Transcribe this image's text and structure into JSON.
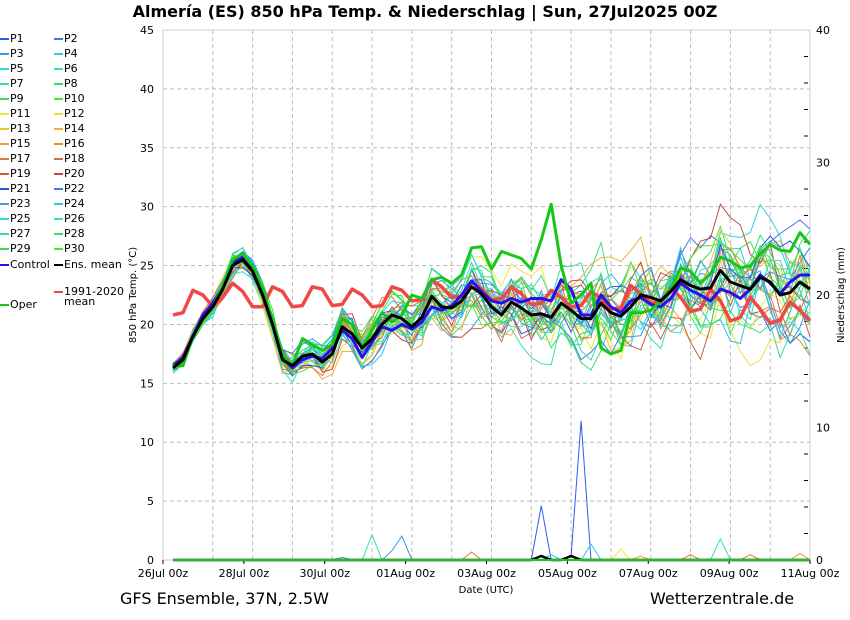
{
  "header": {
    "title": "Almería  (ES)  850 hPa Temp. & Niederschlag | Sun, 27Jul2025 00Z"
  },
  "footer": {
    "left": "GFS Ensemble, 37N, 2.5W",
    "right": "Wetterzentrale.de"
  },
  "chart_data": {
    "type": "line",
    "title": "Almería  (ES)  850 hPa Temp. & Niederschlag | Sun, 27Jul2025 00Z",
    "xlabel": "Date (UTC)",
    "ylabel": "850 hPa Temp. (°C)",
    "y2label": "Niederschlag (mm)",
    "ylim": [
      0,
      45
    ],
    "y2lim": [
      0,
      40
    ],
    "yticks": [
      "0",
      "5",
      "10",
      "15",
      "20",
      "25",
      "30",
      "35",
      "40",
      "45"
    ],
    "y2ticks": [
      "0",
      "10",
      "20",
      "30",
      "40"
    ],
    "xticks": [
      "26Jul 00z",
      "28Jul 00z",
      "30Jul 00z",
      "01Aug 00z",
      "03Aug 00z",
      "05Aug 00z",
      "07Aug 00z",
      "09Aug 00z",
      "11Aug 00z"
    ],
    "x_step_hours": 6,
    "grid": true,
    "legend_placement": "left-outside",
    "legend": [
      {
        "name": "P1",
        "color": "#2f5bea"
      },
      {
        "name": "P2",
        "color": "#3a7de6"
      },
      {
        "name": "P3",
        "color": "#3a9be6"
      },
      {
        "name": "P4",
        "color": "#31c4ec"
      },
      {
        "name": "P5",
        "color": "#2fd7df"
      },
      {
        "name": "P6",
        "color": "#36e0b0"
      },
      {
        "name": "P7",
        "color": "#34df86"
      },
      {
        "name": "P8",
        "color": "#2ee06a"
      },
      {
        "name": "P9",
        "color": "#3de04a"
      },
      {
        "name": "P10",
        "color": "#4ee43a"
      },
      {
        "name": "P11",
        "color": "#f0e83a"
      },
      {
        "name": "P12",
        "color": "#f2de3a"
      },
      {
        "name": "P13",
        "color": "#f2c23a"
      },
      {
        "name": "P14",
        "color": "#f0b43a"
      },
      {
        "name": "P15",
        "color": "#f0a03a"
      },
      {
        "name": "P16",
        "color": "#e89035"
      },
      {
        "name": "P17",
        "color": "#e07a3a"
      },
      {
        "name": "P18",
        "color": "#d86a44"
      },
      {
        "name": "P19",
        "color": "#c85a48"
      },
      {
        "name": "P20",
        "color": "#bf4a4a"
      },
      {
        "name": "P21",
        "color": "#2f4fe0"
      },
      {
        "name": "P22",
        "color": "#3a7de6"
      },
      {
        "name": "P23",
        "color": "#3a9be6"
      },
      {
        "name": "P24",
        "color": "#31c4ec"
      },
      {
        "name": "P25",
        "color": "#2fd7df"
      },
      {
        "name": "P26",
        "color": "#36e0b0"
      },
      {
        "name": "P27",
        "color": "#34df86"
      },
      {
        "name": "P28",
        "color": "#2ee06a"
      },
      {
        "name": "P29",
        "color": "#3de04a"
      },
      {
        "name": "P30",
        "color": "#4ee43a"
      },
      {
        "name": "Control",
        "color": "#2a10e8"
      },
      {
        "name": "Ens. mean",
        "color": "#000000"
      },
      {
        "name": "1991-2020 mean",
        "color": "#f04848"
      },
      {
        "name": "Oper",
        "color": "#16c816"
      }
    ],
    "series": [
      {
        "name": "Ens. mean",
        "values": [
          16.3,
          17.0,
          19.0,
          20.5,
          21.5,
          23.0,
          25.0,
          25.5,
          24.5,
          22.5,
          20.0,
          17.0,
          16.5,
          17.3,
          17.5,
          16.8,
          17.5,
          19.8,
          19.2,
          18.0,
          18.8,
          20.0,
          20.8,
          20.5,
          19.8,
          20.6,
          22.4,
          21.5,
          21.4,
          22.0,
          23.2,
          22.6,
          21.5,
          20.8,
          21.9,
          21.4,
          20.8,
          20.9,
          20.6,
          21.8,
          21.2,
          20.5,
          20.5,
          21.8,
          21.0,
          20.7,
          21.5,
          22.5,
          22.3,
          22.0,
          22.8,
          23.8,
          23.3,
          23.0,
          23.1,
          24.6,
          23.6,
          23.3,
          23.0,
          24.0,
          23.6,
          22.5,
          22.7,
          23.6,
          23.0
        ]
      },
      {
        "name": "Control",
        "values": [
          16.5,
          17.2,
          19.0,
          20.8,
          21.8,
          23.2,
          25.2,
          25.8,
          24.8,
          22.8,
          20.2,
          17.2,
          16.3,
          17.0,
          17.3,
          17.1,
          18.0,
          19.5,
          18.8,
          17.2,
          18.5,
          19.8,
          19.5,
          20.0,
          19.6,
          20.2,
          21.5,
          21.2,
          21.6,
          22.5,
          23.7,
          22.8,
          22.0,
          21.8,
          22.2,
          21.9,
          22.2,
          22.2,
          22.0,
          23.8,
          23.0,
          20.8,
          20.8,
          22.5,
          21.5,
          21.0,
          22.0,
          22.3,
          21.7,
          21.5,
          22.2,
          23.5,
          22.9,
          22.5,
          22.0,
          23.0,
          22.7,
          22.2,
          23.0,
          24.2,
          23.5,
          22.6,
          23.6,
          24.2,
          24.2
        ]
      },
      {
        "name": "Oper",
        "values": [
          16.5,
          16.5,
          19.0,
          20.5,
          21.5,
          23.3,
          25.5,
          26.0,
          25.0,
          23.0,
          20.5,
          17.5,
          16.5,
          18.8,
          18.3,
          17.8,
          18.3,
          20.5,
          20.0,
          18.0,
          19.5,
          21.0,
          20.2,
          20.8,
          22.5,
          22.2,
          23.8,
          24.0,
          23.5,
          24.2,
          26.5,
          26.6,
          24.7,
          26.2,
          25.9,
          25.6,
          24.7,
          27.2,
          30.2,
          25.0,
          21.8,
          22.5,
          23.5,
          18.0,
          17.5,
          17.8,
          21.0,
          21.0,
          21.2,
          22.0,
          23.0,
          24.8,
          24.5,
          23.5,
          24.3,
          25.7,
          25.4,
          24.8,
          25.0,
          26.0,
          26.8,
          26.3,
          26.2,
          27.8,
          26.8
        ]
      },
      {
        "name": "1991-2020 mean",
        "values": [
          20.8,
          21.0,
          22.9,
          22.5,
          21.5,
          22.3,
          23.5,
          22.8,
          21.5,
          21.5,
          23.2,
          22.8,
          21.5,
          21.6,
          23.2,
          23.0,
          21.6,
          21.7,
          23.0,
          22.5,
          21.5,
          21.6,
          23.2,
          22.9,
          22.0,
          22.1,
          23.8,
          23.2,
          22.3,
          22.4,
          23.6,
          23.0,
          22.1,
          22.2,
          23.2,
          22.6,
          21.7,
          21.8,
          22.9,
          22.3,
          21.5,
          21.6,
          22.8,
          22.2,
          21.3,
          21.4,
          23.3,
          22.6,
          21.8,
          21.9,
          23.1,
          22.3,
          21.1,
          21.3,
          23.0,
          22.0,
          20.3,
          20.6,
          22.3,
          21.3,
          20.1,
          20.4,
          21.9,
          21.2,
          20.3
        ]
      }
    ],
    "perturbation_spread_C": [
      0.8,
      0.9,
      1.0,
      1.1,
      1.2,
      1.3,
      1.4,
      1.5,
      1.5,
      1.6,
      1.6,
      1.7,
      1.8,
      1.9,
      2.0,
      2.1,
      2.2,
      2.3,
      2.4,
      2.5,
      2.6,
      2.7,
      2.8,
      2.9,
      3.0,
      3.1,
      3.2,
      3.3,
      3.4,
      3.5,
      3.6,
      3.7,
      3.8,
      3.9,
      4.0,
      4.1,
      4.2,
      4.3,
      4.4,
      4.5,
      4.6,
      4.7,
      4.8,
      4.9,
      5.0,
      5.0,
      5.1,
      5.2,
      5.3,
      5.3,
      5.4,
      5.5,
      5.5,
      5.6,
      5.6,
      5.7,
      5.7,
      5.8,
      5.8,
      5.9,
      5.9,
      6.0,
      6.0,
      6.0,
      6.0
    ],
    "precipitation": [
      {
        "name": "P1",
        "color": "#2f5bea",
        "peaks": [
          [
            41,
            10.5
          ],
          [
            37,
            4.1
          ],
          [
            40,
            0.3
          ]
        ]
      },
      {
        "name": "P3",
        "color": "#3a9be6",
        "peaks": [
          [
            23,
            1.8
          ],
          [
            22,
            0.7
          ],
          [
            17,
            0.2
          ]
        ]
      },
      {
        "name": "P6",
        "color": "#36e0b0",
        "peaks": [
          [
            20,
            1.9
          ],
          [
            55,
            1.6
          ]
        ]
      },
      {
        "name": "P4",
        "color": "#31c4ec",
        "peaks": [
          [
            42,
            1.2
          ],
          [
            38,
            0.4
          ]
        ]
      },
      {
        "name": "P11",
        "color": "#f0e83a",
        "peaks": [
          [
            45,
            0.8
          ]
        ]
      },
      {
        "name": "P17",
        "color": "#e07a3a",
        "peaks": [
          [
            30,
            0.6
          ],
          [
            52,
            0.4
          ],
          [
            58,
            0.4
          ]
        ]
      },
      {
        "name": "P15",
        "color": "#f0a03a",
        "peaks": [
          [
            47,
            0.3
          ],
          [
            63,
            0.5
          ]
        ]
      },
      {
        "name": "Ens. mean",
        "color": "#000000",
        "peaks": [
          [
            37,
            0.3
          ],
          [
            40,
            0.3
          ]
        ]
      },
      {
        "name": "Oper",
        "color": "#16c816",
        "peaks": []
      }
    ]
  }
}
